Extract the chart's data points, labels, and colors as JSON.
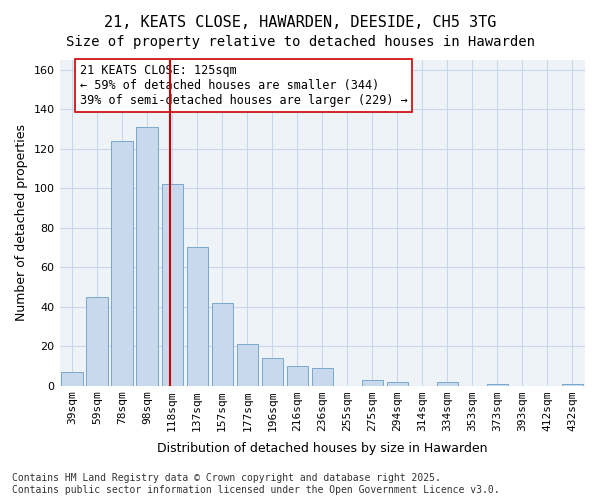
{
  "title_line1": "21, KEATS CLOSE, HAWARDEN, DEESIDE, CH5 3TG",
  "title_line2": "Size of property relative to detached houses in Hawarden",
  "xlabel": "Distribution of detached houses by size in Hawarden",
  "ylabel": "Number of detached properties",
  "bar_labels": [
    "39sqm",
    "59sqm",
    "78sqm",
    "98sqm",
    "118sqm",
    "137sqm",
    "157sqm",
    "177sqm",
    "196sqm",
    "216sqm",
    "236sqm",
    "255sqm",
    "275sqm",
    "294sqm",
    "314sqm",
    "334sqm",
    "353sqm",
    "373sqm",
    "393sqm",
    "412sqm",
    "432sqm"
  ],
  "bar_values": [
    7,
    45,
    124,
    131,
    102,
    70,
    42,
    21,
    14,
    10,
    9,
    0,
    3,
    2,
    0,
    2,
    0,
    1,
    0,
    0,
    1
  ],
  "bar_color": "#c9d9ed",
  "bar_edgecolor": "#7ba7cc",
  "vline_x": 4.0,
  "vline_color": "#cc0000",
  "annotation_text": "21 KEATS CLOSE: 125sqm\n← 59% of detached houses are smaller (344)\n39% of semi-detached houses are larger (229) →",
  "annotation_box_color": "#ffffff",
  "annotation_box_edgecolor": "#cc0000",
  "ylim": [
    0,
    165
  ],
  "yticks": [
    0,
    20,
    40,
    60,
    80,
    100,
    120,
    140,
    160
  ],
  "grid_color": "#c8d8e8",
  "background_color": "#eef3f8",
  "footnote": "Contains HM Land Registry data © Crown copyright and database right 2025.\nContains public sector information licensed under the Open Government Licence v3.0.",
  "title_fontsize": 11,
  "subtitle_fontsize": 10,
  "ylabel_fontsize": 9,
  "xlabel_fontsize": 9,
  "tick_fontsize": 8,
  "annotation_fontsize": 8.5,
  "footnote_fontsize": 7
}
